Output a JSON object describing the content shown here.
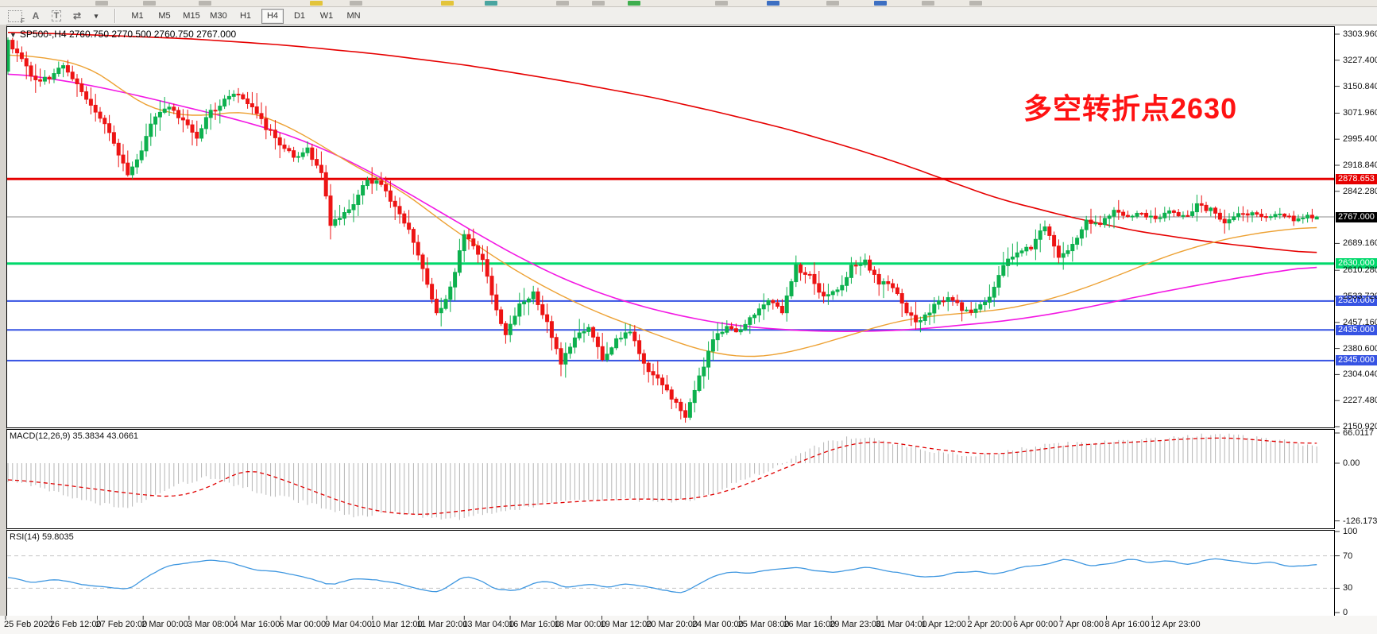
{
  "toolbar": {
    "tools": [
      {
        "id": "grid-f-tool",
        "label": "F"
      },
      {
        "id": "text-a-tool",
        "label": "A"
      },
      {
        "id": "text-box-tool",
        "label": "T"
      },
      {
        "id": "arrows-tool",
        "label": "⇄"
      }
    ],
    "dropdown_caret": "▾",
    "timeframes": [
      "M1",
      "M5",
      "M15",
      "M30",
      "H1",
      "H4",
      "D1",
      "W1",
      "MN"
    ],
    "active_timeframe": "H4"
  },
  "chart": {
    "title_caret": "▼",
    "title_display": "SP500-,H4  2760.750 2770.500 2760.750 2767.000"
  },
  "chart_data": {
    "type": "candlestick",
    "symbol": "SP500-",
    "timeframe": "H4",
    "ohlc_display": {
      "open": "2760.750",
      "high": "2770.500",
      "low": "2760.750",
      "close": "2767.000"
    },
    "bars": 285,
    "price_axis_ticks": [
      3303.96,
      3227.4,
      3150.84,
      3071.96,
      2995.4,
      2918.84,
      2842.28,
      2689.16,
      2610.28,
      2533.72,
      2457.16,
      2380.6,
      2304.04,
      2227.48,
      2150.92
    ],
    "time_axis_ticks": [
      "25 Feb 2020",
      "26 Feb 12:00",
      "27 Feb 20:00",
      "2 Mar 00:00",
      "3 Mar 08:00",
      "4 Mar 16:00",
      "6 Mar 00:00",
      "9 Mar 04:00",
      "10 Mar 12:00",
      "11 Mar 20:00",
      "13 Mar 04:00",
      "16 Mar 16:00",
      "18 Mar 00:00",
      "19 Mar 12:00",
      "20 Mar 20:00",
      "24 Mar 00:00",
      "25 Mar 08:00",
      "26 Mar 16:00",
      "29 Mar 23:00",
      "31 Mar 04:00",
      "1 Apr 12:00",
      "2 Apr 20:00",
      "6 Apr 00:00",
      "7 Apr 08:00",
      "8 Apr 16:00",
      "12 Apr 23:00"
    ],
    "levels": [
      {
        "price": 2878.653,
        "label": "2878.653",
        "color": "#e60000",
        "width": 3,
        "type": "resistance-line"
      },
      {
        "price": 2767.0,
        "label": "2767.000",
        "color": "#000000",
        "line_color": "#8c8c8c",
        "width": 1,
        "type": "current-price-line"
      },
      {
        "price": 2630.0,
        "label": "2630.000",
        "color": "#00d96b",
        "width": 3,
        "type": "support-line"
      },
      {
        "price": 2520.0,
        "label": "2520.000",
        "color": "#3653e3",
        "width": 2,
        "type": "support-line"
      },
      {
        "price": 2435.0,
        "label": "2435.000",
        "color": "#3653e3",
        "width": 2,
        "type": "support-line"
      },
      {
        "price": 2345.0,
        "label": "2345.000",
        "color": "#3653e3",
        "width": 2,
        "type": "support-line"
      }
    ],
    "annotation": {
      "text": "多空转折点2630",
      "color": "#ff1212"
    },
    "colors": {
      "bull": "#0db14e",
      "bear": "#ed1414",
      "ma_fast": "#eda133",
      "ma_mid": "#f318e3",
      "ma_slow": "#e60000",
      "macd_bar": "#b5b5b5",
      "macd_signal": "#e00000",
      "rsi_line": "#3f97e0"
    },
    "close_anchors": [
      [
        0,
        3280
      ],
      [
        3,
        3230
      ],
      [
        6,
        3165
      ],
      [
        9,
        3175
      ],
      [
        12,
        3210
      ],
      [
        15,
        3160
      ],
      [
        18,
        3090
      ],
      [
        21,
        3035
      ],
      [
        24,
        2955
      ],
      [
        26,
        2890
      ],
      [
        28,
        2935
      ],
      [
        30,
        3000
      ],
      [
        32,
        3065
      ],
      [
        35,
        3090
      ],
      [
        38,
        3050
      ],
      [
        41,
        3005
      ],
      [
        44,
        3075
      ],
      [
        47,
        3110
      ],
      [
        50,
        3130
      ],
      [
        53,
        3085
      ],
      [
        56,
        3030
      ],
      [
        59,
        2985
      ],
      [
        62,
        2945
      ],
      [
        65,
        2965
      ],
      [
        68,
        2900
      ],
      [
        70,
        2745
      ],
      [
        72,
        2760
      ],
      [
        75,
        2800
      ],
      [
        78,
        2880
      ],
      [
        81,
        2860
      ],
      [
        84,
        2800
      ],
      [
        87,
        2730
      ],
      [
        90,
        2615
      ],
      [
        93,
        2480
      ],
      [
        96,
        2555
      ],
      [
        99,
        2715
      ],
      [
        101,
        2690
      ],
      [
        103,
        2640
      ],
      [
        105,
        2535
      ],
      [
        108,
        2425
      ],
      [
        111,
        2505
      ],
      [
        114,
        2540
      ],
      [
        117,
        2455
      ],
      [
        120,
        2335
      ],
      [
        123,
        2415
      ],
      [
        126,
        2445
      ],
      [
        129,
        2355
      ],
      [
        132,
        2405
      ],
      [
        135,
        2435
      ],
      [
        138,
        2335
      ],
      [
        141,
        2290
      ],
      [
        144,
        2235
      ],
      [
        147,
        2185
      ],
      [
        150,
        2295
      ],
      [
        153,
        2405
      ],
      [
        156,
        2450
      ],
      [
        159,
        2430
      ],
      [
        162,
        2485
      ],
      [
        165,
        2525
      ],
      [
        168,
        2485
      ],
      [
        171,
        2620
      ],
      [
        174,
        2590
      ],
      [
        177,
        2535
      ],
      [
        180,
        2545
      ],
      [
        183,
        2620
      ],
      [
        186,
        2640
      ],
      [
        189,
        2575
      ],
      [
        192,
        2560
      ],
      [
        195,
        2485
      ],
      [
        198,
        2455
      ],
      [
        201,
        2505
      ],
      [
        204,
        2530
      ],
      [
        207,
        2500
      ],
      [
        210,
        2490
      ],
      [
        213,
        2535
      ],
      [
        216,
        2625
      ],
      [
        219,
        2660
      ],
      [
        222,
        2675
      ],
      [
        225,
        2740
      ],
      [
        228,
        2655
      ],
      [
        231,
        2685
      ],
      [
        234,
        2750
      ],
      [
        237,
        2740
      ],
      [
        240,
        2790
      ],
      [
        243,
        2765
      ],
      [
        246,
        2775
      ],
      [
        249,
        2755
      ],
      [
        252,
        2780
      ],
      [
        255,
        2765
      ],
      [
        258,
        2800
      ],
      [
        261,
        2790
      ],
      [
        264,
        2755
      ],
      [
        267,
        2770
      ],
      [
        270,
        2780
      ],
      [
        273,
        2760
      ],
      [
        276,
        2775
      ],
      [
        279,
        2755
      ],
      [
        282,
        2770
      ],
      [
        284,
        2767
      ]
    ],
    "ma_fast_anchors": [
      [
        0,
        3245
      ],
      [
        8,
        3235
      ],
      [
        16,
        3215
      ],
      [
        22,
        3170
      ],
      [
        28,
        3105
      ],
      [
        34,
        3075
      ],
      [
        40,
        3062
      ],
      [
        46,
        3070
      ],
      [
        52,
        3078
      ],
      [
        58,
        3050
      ],
      [
        64,
        3010
      ],
      [
        70,
        2960
      ],
      [
        76,
        2910
      ],
      [
        82,
        2870
      ],
      [
        88,
        2820
      ],
      [
        94,
        2755
      ],
      [
        100,
        2700
      ],
      [
        106,
        2645
      ],
      [
        112,
        2595
      ],
      [
        118,
        2550
      ],
      [
        124,
        2510
      ],
      [
        130,
        2475
      ],
      [
        136,
        2445
      ],
      [
        142,
        2415
      ],
      [
        148,
        2385
      ],
      [
        154,
        2365
      ],
      [
        160,
        2355
      ],
      [
        166,
        2360
      ],
      [
        172,
        2378
      ],
      [
        178,
        2400
      ],
      [
        184,
        2425
      ],
      [
        190,
        2450
      ],
      [
        196,
        2468
      ],
      [
        202,
        2478
      ],
      [
        208,
        2485
      ],
      [
        214,
        2492
      ],
      [
        220,
        2505
      ],
      [
        226,
        2525
      ],
      [
        232,
        2550
      ],
      [
        238,
        2580
      ],
      [
        244,
        2612
      ],
      [
        250,
        2645
      ],
      [
        256,
        2672
      ],
      [
        262,
        2695
      ],
      [
        268,
        2712
      ],
      [
        274,
        2725
      ],
      [
        279,
        2732
      ],
      [
        284,
        2738
      ]
    ],
    "ma_mid_anchors": [
      [
        0,
        3190
      ],
      [
        10,
        3172
      ],
      [
        20,
        3148
      ],
      [
        30,
        3118
      ],
      [
        40,
        3085
      ],
      [
        50,
        3052
      ],
      [
        60,
        3012
      ],
      [
        70,
        2958
      ],
      [
        80,
        2890
      ],
      [
        90,
        2812
      ],
      [
        100,
        2732
      ],
      [
        110,
        2655
      ],
      [
        120,
        2588
      ],
      [
        130,
        2535
      ],
      [
        140,
        2495
      ],
      [
        150,
        2465
      ],
      [
        158,
        2448
      ],
      [
        166,
        2438
      ],
      [
        174,
        2432
      ],
      [
        182,
        2430
      ],
      [
        190,
        2432
      ],
      [
        198,
        2438
      ],
      [
        206,
        2448
      ],
      [
        214,
        2458
      ],
      [
        222,
        2472
      ],
      [
        230,
        2490
      ],
      [
        238,
        2512
      ],
      [
        246,
        2535
      ],
      [
        254,
        2556
      ],
      [
        262,
        2576
      ],
      [
        270,
        2595
      ],
      [
        277,
        2610
      ],
      [
        284,
        2622
      ]
    ],
    "ma_slow_anchors": [
      [
        0,
        3310
      ],
      [
        20,
        3301
      ],
      [
        40,
        3290
      ],
      [
        60,
        3272
      ],
      [
        80,
        3246
      ],
      [
        100,
        3212
      ],
      [
        120,
        3168
      ],
      [
        140,
        3118
      ],
      [
        155,
        3072
      ],
      [
        170,
        3022
      ],
      [
        185,
        2962
      ],
      [
        195,
        2918
      ],
      [
        205,
        2868
      ],
      [
        215,
        2820
      ],
      [
        230,
        2768
      ],
      [
        245,
        2725
      ],
      [
        260,
        2695
      ],
      [
        272,
        2676
      ],
      [
        284,
        2660
      ]
    ],
    "macd": {
      "display": "MACD(12,26,9) 35.3834 43.0661",
      "axis_ticks": [
        66.0117,
        0.0,
        -126.173
      ],
      "axis_labels": [
        "66.0117",
        "0.00",
        "-126.173"
      ],
      "hist_anchors": [
        [
          0,
          -38
        ],
        [
          8,
          -55
        ],
        [
          14,
          -75
        ],
        [
          20,
          -90
        ],
        [
          26,
          -95
        ],
        [
          32,
          -70
        ],
        [
          38,
          -45
        ],
        [
          43,
          -32
        ],
        [
          48,
          -45
        ],
        [
          55,
          -65
        ],
        [
          62,
          -80
        ],
        [
          68,
          -95
        ],
        [
          75,
          -118
        ],
        [
          82,
          -108
        ],
        [
          88,
          -112
        ],
        [
          95,
          -125
        ],
        [
          102,
          -115
        ],
        [
          110,
          -100
        ],
        [
          118,
          -88
        ],
        [
          126,
          -82
        ],
        [
          134,
          -78
        ],
        [
          142,
          -84
        ],
        [
          148,
          -80
        ],
        [
          154,
          -60
        ],
        [
          160,
          -35
        ],
        [
          166,
          -10
        ],
        [
          170,
          10
        ],
        [
          175,
          35
        ],
        [
          180,
          52
        ],
        [
          186,
          58
        ],
        [
          192,
          45
        ],
        [
          198,
          30
        ],
        [
          204,
          22
        ],
        [
          210,
          16
        ],
        [
          216,
          24
        ],
        [
          222,
          34
        ],
        [
          228,
          42
        ],
        [
          234,
          45
        ],
        [
          240,
          48
        ],
        [
          246,
          52
        ],
        [
          252,
          56
        ],
        [
          258,
          60
        ],
        [
          264,
          62
        ],
        [
          270,
          58
        ],
        [
          276,
          50
        ],
        [
          280,
          42
        ],
        [
          284,
          35.4
        ]
      ],
      "signal_anchors": [
        [
          0,
          -35
        ],
        [
          10,
          -45
        ],
        [
          20,
          -58
        ],
        [
          30,
          -70
        ],
        [
          36,
          -74
        ],
        [
          42,
          -60
        ],
        [
          48,
          -30
        ],
        [
          52,
          -12
        ],
        [
          58,
          -30
        ],
        [
          66,
          -60
        ],
        [
          74,
          -90
        ],
        [
          82,
          -108
        ],
        [
          90,
          -113
        ],
        [
          98,
          -105
        ],
        [
          106,
          -95
        ],
        [
          114,
          -90
        ],
        [
          122,
          -85
        ],
        [
          130,
          -80
        ],
        [
          138,
          -78
        ],
        [
          146,
          -80
        ],
        [
          152,
          -72
        ],
        [
          158,
          -55
        ],
        [
          164,
          -30
        ],
        [
          170,
          -5
        ],
        [
          176,
          20
        ],
        [
          182,
          40
        ],
        [
          188,
          48
        ],
        [
          194,
          42
        ],
        [
          200,
          32
        ],
        [
          206,
          25
        ],
        [
          212,
          20
        ],
        [
          218,
          22
        ],
        [
          224,
          30
        ],
        [
          230,
          38
        ],
        [
          236,
          42
        ],
        [
          242,
          45
        ],
        [
          248,
          48
        ],
        [
          254,
          52
        ],
        [
          260,
          55
        ],
        [
          266,
          55
        ],
        [
          272,
          50
        ],
        [
          278,
          45
        ],
        [
          284,
          43.1
        ]
      ]
    },
    "rsi": {
      "display": "RSI(14) 59.8035",
      "axis_ticks": [
        100,
        70,
        30,
        0
      ],
      "axis_labels": [
        "100",
        "70",
        "30",
        "0"
      ],
      "dashed_levels": [
        70,
        30
      ],
      "line_anchors": [
        [
          0,
          45
        ],
        [
          5,
          36
        ],
        [
          10,
          41
        ],
        [
          16,
          35
        ],
        [
          22,
          31
        ],
        [
          26,
          28
        ],
        [
          30,
          44
        ],
        [
          34,
          56
        ],
        [
          38,
          60
        ],
        [
          44,
          65
        ],
        [
          48,
          62
        ],
        [
          52,
          55
        ],
        [
          58,
          50
        ],
        [
          64,
          45
        ],
        [
          70,
          34
        ],
        [
          75,
          42
        ],
        [
          80,
          40
        ],
        [
          84,
          37
        ],
        [
          88,
          31
        ],
        [
          93,
          24
        ],
        [
          96,
          33
        ],
        [
          99,
          45
        ],
        [
          102,
          40
        ],
        [
          106,
          29
        ],
        [
          110,
          26
        ],
        [
          114,
          36
        ],
        [
          117,
          39
        ],
        [
          121,
          30
        ],
        [
          126,
          36
        ],
        [
          130,
          31
        ],
        [
          134,
          36
        ],
        [
          138,
          32
        ],
        [
          142,
          28
        ],
        [
          146,
          24
        ],
        [
          150,
          35
        ],
        [
          153,
          44
        ],
        [
          156,
          50
        ],
        [
          160,
          48
        ],
        [
          165,
          52
        ],
        [
          171,
          56
        ],
        [
          175,
          52
        ],
        [
          180,
          49
        ],
        [
          186,
          56
        ],
        [
          191,
          51
        ],
        [
          196,
          46
        ],
        [
          200,
          43
        ],
        [
          205,
          49
        ],
        [
          210,
          51
        ],
        [
          214,
          47
        ],
        [
          220,
          56
        ],
        [
          226,
          61
        ],
        [
          230,
          66
        ],
        [
          234,
          58
        ],
        [
          240,
          61
        ],
        [
          244,
          67
        ],
        [
          248,
          62
        ],
        [
          252,
          64
        ],
        [
          256,
          59
        ],
        [
          262,
          67
        ],
        [
          266,
          64
        ],
        [
          270,
          60
        ],
        [
          274,
          63
        ],
        [
          278,
          57
        ],
        [
          284,
          59.8
        ]
      ]
    }
  }
}
